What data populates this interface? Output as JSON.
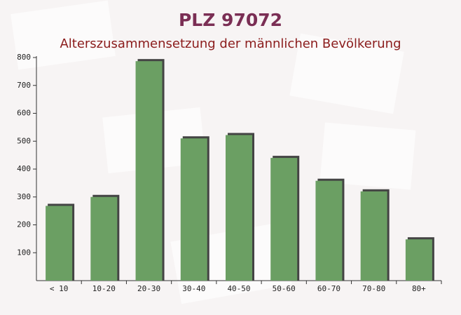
{
  "chart_data": {
    "type": "bar",
    "title": "PLZ 97072",
    "subtitle": "Alterszusammensetzung der männlichen Bevölkerung",
    "categories": [
      "< 10",
      "10-20",
      "20-30",
      "30-40",
      "40-50",
      "50-60",
      "60-70",
      "70-80",
      "80+"
    ],
    "values": [
      268,
      300,
      787,
      510,
      522,
      440,
      358,
      320,
      148
    ],
    "color": "#6b9f63",
    "ylim": [
      0,
      800
    ],
    "yticks": [
      100,
      200,
      300,
      400,
      500,
      600,
      700,
      800
    ]
  }
}
